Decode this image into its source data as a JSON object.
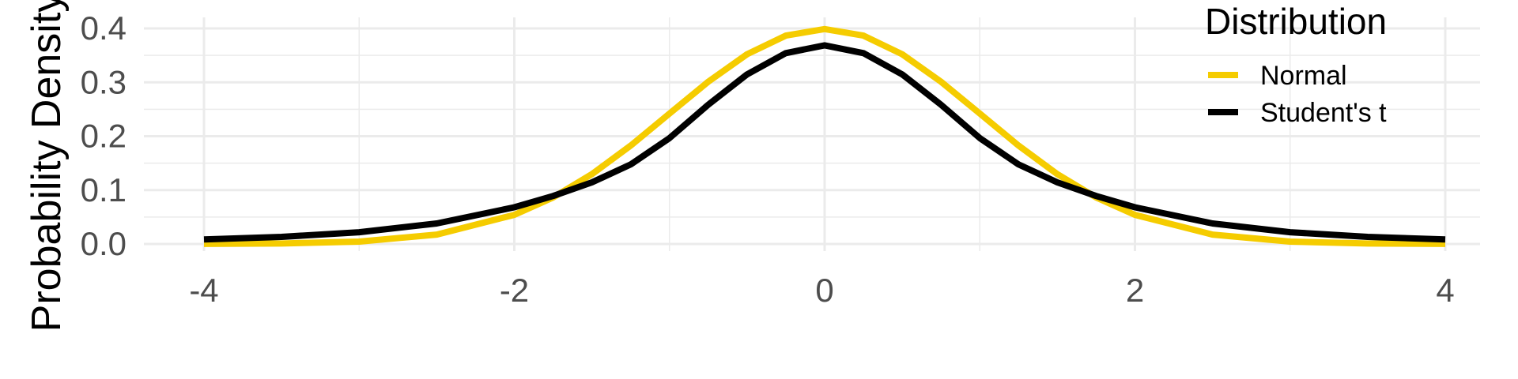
{
  "chart_data": {
    "type": "line",
    "title": "",
    "xlabel": "",
    "ylabel": "Probability Density",
    "xlim": [
      -4,
      4
    ],
    "ylim": [
      0,
      0.4
    ],
    "x_ticks": [
      -4,
      -2,
      0,
      2,
      4
    ],
    "y_ticks": [
      0.0,
      0.1,
      0.2,
      0.3,
      0.4
    ],
    "x_tick_labels": [
      "-4",
      "-2",
      "0",
      "2",
      "4"
    ],
    "y_tick_labels": [
      "0.0",
      "0.1",
      "0.2",
      "0.3",
      "0.4"
    ],
    "grid": true,
    "legend": {
      "title": "Distribution",
      "placement": "top-right"
    },
    "x": [
      -4,
      -3.5,
      -3,
      -2.5,
      -2,
      -1.75,
      -1.5,
      -1.25,
      -1,
      -0.75,
      -0.5,
      -0.25,
      0,
      0.25,
      0.5,
      0.75,
      1,
      1.25,
      1.5,
      1.75,
      2,
      2.5,
      3,
      3.5,
      4
    ],
    "series": [
      {
        "name": "Normal",
        "color": "#F5CC00",
        "values": [
          0.0001,
          0.0009,
          0.0044,
          0.0175,
          0.054,
          0.0863,
          0.1295,
          0.1826,
          0.242,
          0.3011,
          0.3521,
          0.3867,
          0.3989,
          0.3867,
          0.3521,
          0.3011,
          0.242,
          0.1826,
          0.1295,
          0.0863,
          0.054,
          0.0175,
          0.0044,
          0.0009,
          0.0001
        ]
      },
      {
        "name": "Student's t",
        "color": "#000000",
        "values": [
          0.0085,
          0.0132,
          0.0219,
          0.0381,
          0.0681,
          0.0891,
          0.1143,
          0.1475,
          0.1965,
          0.2584,
          0.3147,
          0.3541,
          0.3686,
          0.3541,
          0.3147,
          0.2584,
          0.1965,
          0.1475,
          0.1143,
          0.0891,
          0.0681,
          0.0381,
          0.0219,
          0.0132,
          0.0085
        ]
      }
    ]
  }
}
